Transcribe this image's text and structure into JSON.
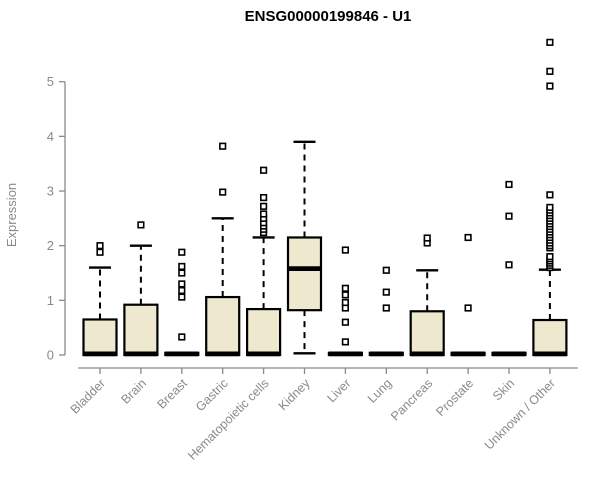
{
  "title": "ENSG00000199846 - U1",
  "colors": {
    "box_fill": "#ede8ce",
    "box_border": "#000000",
    "median": "#000000",
    "whisker": "#000000",
    "outlier_stroke": "#000000",
    "axis": "#8a8a8a",
    "title_text": "#000000",
    "background": "#ffffff"
  },
  "chart_data": {
    "type": "boxplot",
    "title": "ENSG00000199846 - U1",
    "xlabel": "",
    "ylabel": "Expression",
    "ylim": [
      0,
      5.8
    ],
    "yticks": [
      0,
      1,
      2,
      3,
      4,
      5
    ],
    "grid": false,
    "legend": false,
    "categories": [
      "Bladder",
      "Brain",
      "Breast",
      "Gastric",
      "Hematopoietic cells",
      "Kidney",
      "Liver",
      "Lung",
      "Pancreas",
      "Prostate",
      "Skin",
      "Unknown / Other"
    ],
    "boxes": [
      {
        "category": "Bladder",
        "q1": 0,
        "median": 0.02,
        "q3": 0.65,
        "whisker_low": 0,
        "whisker_high": 1.6,
        "outliers": [
          1.88,
          2.0
        ]
      },
      {
        "category": "Brain",
        "q1": 0,
        "median": 0.02,
        "q3": 0.92,
        "whisker_low": 0,
        "whisker_high": 2.0,
        "outliers": [
          2.38
        ]
      },
      {
        "category": "Breast",
        "q1": 0,
        "median": 0.02,
        "q3": 0.04,
        "whisker_low": 0,
        "whisker_high": 0.04,
        "outliers": [
          0.33,
          1.06,
          1.18,
          1.3,
          1.5,
          1.62,
          1.88
        ]
      },
      {
        "category": "Gastric",
        "q1": 0,
        "median": 0.02,
        "q3": 1.06,
        "whisker_low": 0,
        "whisker_high": 2.5,
        "outliers": [
          2.98,
          3.82
        ]
      },
      {
        "category": "Hematopoietic cells",
        "q1": 0,
        "median": 0.02,
        "q3": 0.84,
        "whisker_low": 0,
        "whisker_high": 2.15,
        "outliers": [
          2.24,
          2.3,
          2.36,
          2.42,
          2.5,
          2.58,
          2.72,
          2.88,
          3.38
        ]
      },
      {
        "category": "Kidney",
        "q1": 0.82,
        "median": 1.58,
        "q3": 2.15,
        "whisker_low": 0.03,
        "whisker_high": 3.9,
        "outliers": []
      },
      {
        "category": "Liver",
        "q1": 0,
        "median": 0.02,
        "q3": 0.04,
        "whisker_low": 0,
        "whisker_high": 0.04,
        "outliers": [
          0.24,
          0.6,
          0.86,
          0.96,
          1.1,
          1.22,
          1.92
        ]
      },
      {
        "category": "Lung",
        "q1": 0,
        "median": 0.02,
        "q3": 0.04,
        "whisker_low": 0,
        "whisker_high": 0.04,
        "outliers": [
          0.86,
          1.15,
          1.55
        ]
      },
      {
        "category": "Pancreas",
        "q1": 0,
        "median": 0.02,
        "q3": 0.8,
        "whisker_low": 0,
        "whisker_high": 1.55,
        "outliers": [
          2.05,
          2.14
        ]
      },
      {
        "category": "Prostate",
        "q1": 0,
        "median": 0.02,
        "q3": 0.04,
        "whisker_low": 0,
        "whisker_high": 0.04,
        "outliers": [
          0.86,
          2.15
        ]
      },
      {
        "category": "Skin",
        "q1": 0,
        "median": 0.02,
        "q3": 0.04,
        "whisker_low": 0,
        "whisker_high": 0.04,
        "outliers": [
          1.65,
          2.54,
          3.12
        ]
      },
      {
        "category": "Unknown / Other",
        "q1": 0,
        "median": 0.02,
        "q3": 0.64,
        "whisker_low": 0,
        "whisker_high": 1.56,
        "outliers": [
          1.6,
          1.64,
          1.68,
          1.72,
          1.76,
          1.8,
          1.96,
          2.0,
          2.05,
          2.1,
          2.15,
          2.2,
          2.25,
          2.3,
          2.35,
          2.4,
          2.45,
          2.5,
          2.55,
          2.6,
          2.65,
          2.7,
          2.93,
          4.92,
          5.19,
          5.72
        ]
      }
    ]
  }
}
